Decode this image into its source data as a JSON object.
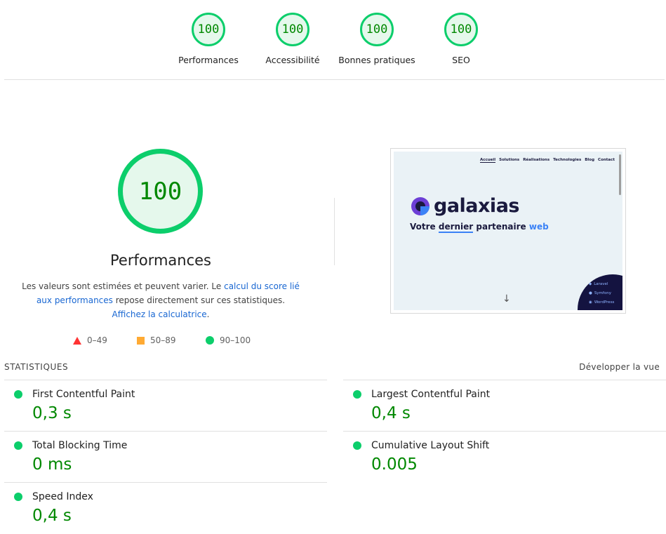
{
  "gauges": [
    {
      "score": "100",
      "label": "Performances"
    },
    {
      "score": "100",
      "label": "Accessibilité"
    },
    {
      "score": "100",
      "label": "Bonnes pratiques"
    },
    {
      "score": "100",
      "label": "SEO"
    }
  ],
  "main": {
    "score": "100",
    "title": "Performances",
    "desc_1": "Les valeurs sont estimées et peuvent varier. Le ",
    "desc_link_1": "calcul du score lié aux performances",
    "desc_2": " repose directement sur ces statistiques. ",
    "desc_link_2": "Affichez la calculatrice",
    "desc_3": "."
  },
  "legend": [
    {
      "range": "0–49",
      "icon": "fail-triangle-icon",
      "color": "#ff3333"
    },
    {
      "range": "50–89",
      "icon": "average-square-icon",
      "color": "#ffaa33"
    },
    {
      "range": "90–100",
      "icon": "pass-circle-icon",
      "color": "#0cce6b"
    }
  ],
  "thumbnail": {
    "nav": [
      "Accueil",
      "Solutions",
      "Réalisations",
      "Technologies",
      "Blog",
      "Contact"
    ],
    "brand": "galaxias",
    "tagline_1": "Votre ",
    "tagline_2": "dernier",
    "tagline_3": " partenaire ",
    "tagline_4": "web",
    "badges": [
      "Laravel",
      "Symfony",
      "WordPress"
    ]
  },
  "stats": {
    "header": "STATISTIQUES",
    "expand_label": "Développer la vue",
    "metrics": [
      {
        "title": "First Contentful Paint",
        "value": "0,3 s"
      },
      {
        "title": "Largest Contentful Paint",
        "value": "0,4 s"
      },
      {
        "title": "Total Blocking Time",
        "value": "0 ms"
      },
      {
        "title": "Cumulative Layout Shift",
        "value": "0.005"
      },
      {
        "title": "Speed Index",
        "value": "0,4 s"
      }
    ]
  },
  "colors": {
    "pass": "#0cce6b",
    "pass_text": "#008800",
    "link": "#1967d2"
  }
}
